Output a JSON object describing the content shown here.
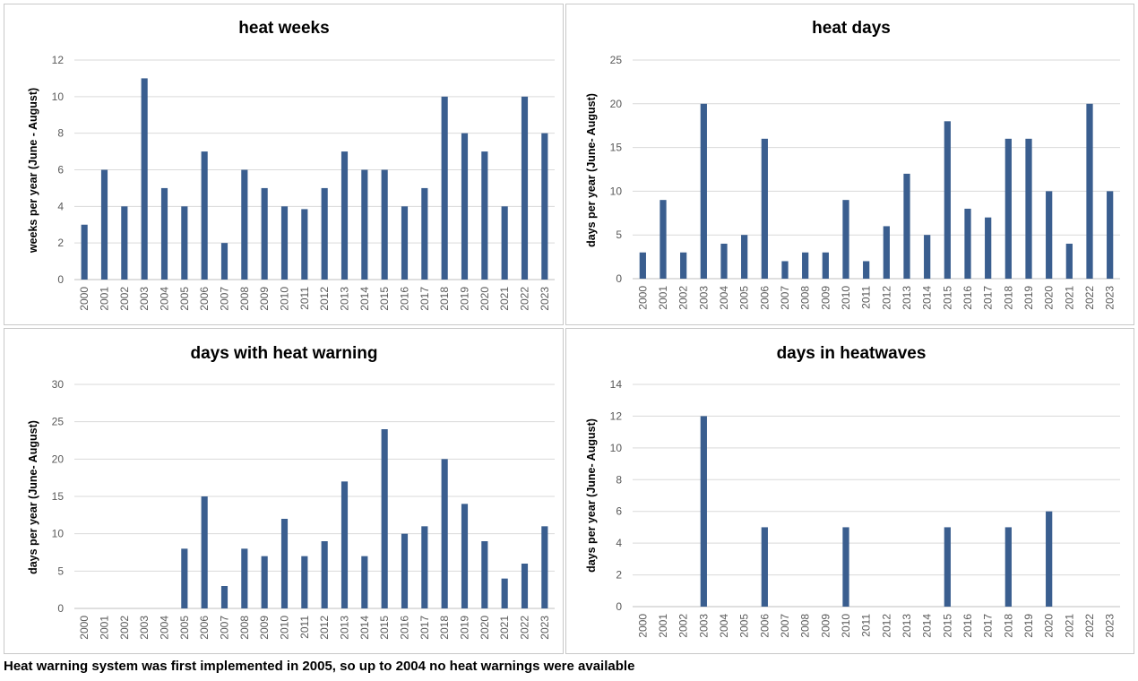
{
  "colors": {
    "bar": "#3A5E8F",
    "grid": "#d9d9d9",
    "axis": "#bfbfbf",
    "text": "#595959"
  },
  "footnote": "Heat warning system was first implemented in 2005, so up to 2004 no heat warnings were available",
  "chart_data": [
    {
      "type": "bar",
      "title": "heat weeks",
      "ylabel": "weeks per year (June - August)",
      "ylim": [
        0,
        12
      ],
      "yticks": [
        0,
        2,
        4,
        6,
        8,
        10,
        12
      ],
      "grid": true,
      "categories": [
        "2000",
        "2001",
        "2002",
        "2003",
        "2004",
        "2005",
        "2006",
        "2007",
        "2008",
        "2009",
        "2010",
        "2011",
        "2012",
        "2013",
        "2014",
        "2015",
        "2016",
        "2017",
        "2018",
        "2019",
        "2020",
        "2021",
        "2022",
        "2023"
      ],
      "values": [
        3,
        6,
        4,
        11,
        5,
        4,
        7,
        2,
        6,
        5,
        4,
        3.85,
        5,
        7,
        6,
        6,
        4,
        5,
        10,
        8,
        7,
        4,
        10,
        8
      ]
    },
    {
      "type": "bar",
      "title": "heat days",
      "ylabel": "days per year (June- August)",
      "ylim": [
        0,
        25
      ],
      "yticks": [
        0,
        5,
        10,
        15,
        20,
        25
      ],
      "grid": true,
      "categories": [
        "2000",
        "2001",
        "2002",
        "2003",
        "2004",
        "2005",
        "2006",
        "2007",
        "2008",
        "2009",
        "2010",
        "2011",
        "2012",
        "2013",
        "2014",
        "2015",
        "2016",
        "2017",
        "2018",
        "2019",
        "2020",
        "2021",
        "2022",
        "2023"
      ],
      "values": [
        3,
        9,
        3,
        20,
        4,
        5,
        16,
        2,
        3,
        3,
        9,
        2,
        6,
        12,
        5,
        18,
        8,
        7,
        16,
        16,
        10,
        4,
        20,
        10
      ]
    },
    {
      "type": "bar",
      "title": "days with heat warning",
      "ylabel": "days per year (June- August)",
      "ylim": [
        0,
        30
      ],
      "yticks": [
        0,
        5,
        10,
        15,
        20,
        25,
        30
      ],
      "grid": true,
      "categories": [
        "2000",
        "2001",
        "2002",
        "2003",
        "2004",
        "2005",
        "2006",
        "2007",
        "2008",
        "2009",
        "2010",
        "2011",
        "2012",
        "2013",
        "2014",
        "2015",
        "2016",
        "2017",
        "2018",
        "2019",
        "2020",
        "2021",
        "2022",
        "2023"
      ],
      "values": [
        0,
        0,
        0,
        0,
        0,
        8,
        15,
        3,
        8,
        7,
        12,
        7,
        9,
        17,
        7,
        24,
        10,
        11,
        20,
        14,
        9,
        4,
        6,
        11
      ]
    },
    {
      "type": "bar",
      "title": "days in heatwaves",
      "ylabel": "days per year (June- August)",
      "ylim": [
        0,
        14
      ],
      "yticks": [
        0,
        2,
        4,
        6,
        8,
        10,
        12,
        14
      ],
      "grid": true,
      "categories": [
        "2000",
        "2001",
        "2002",
        "2003",
        "2004",
        "2005",
        "2006",
        "2007",
        "2008",
        "2009",
        "2010",
        "2011",
        "2012",
        "2013",
        "2014",
        "2015",
        "2016",
        "2017",
        "2018",
        "2019",
        "2020",
        "2021",
        "2022",
        "2023"
      ],
      "values": [
        0,
        0,
        0,
        12,
        0,
        0,
        5,
        0,
        0,
        0,
        5,
        0,
        0,
        0,
        0,
        5,
        0,
        0,
        5,
        0,
        6,
        0,
        0,
        0
      ]
    }
  ]
}
